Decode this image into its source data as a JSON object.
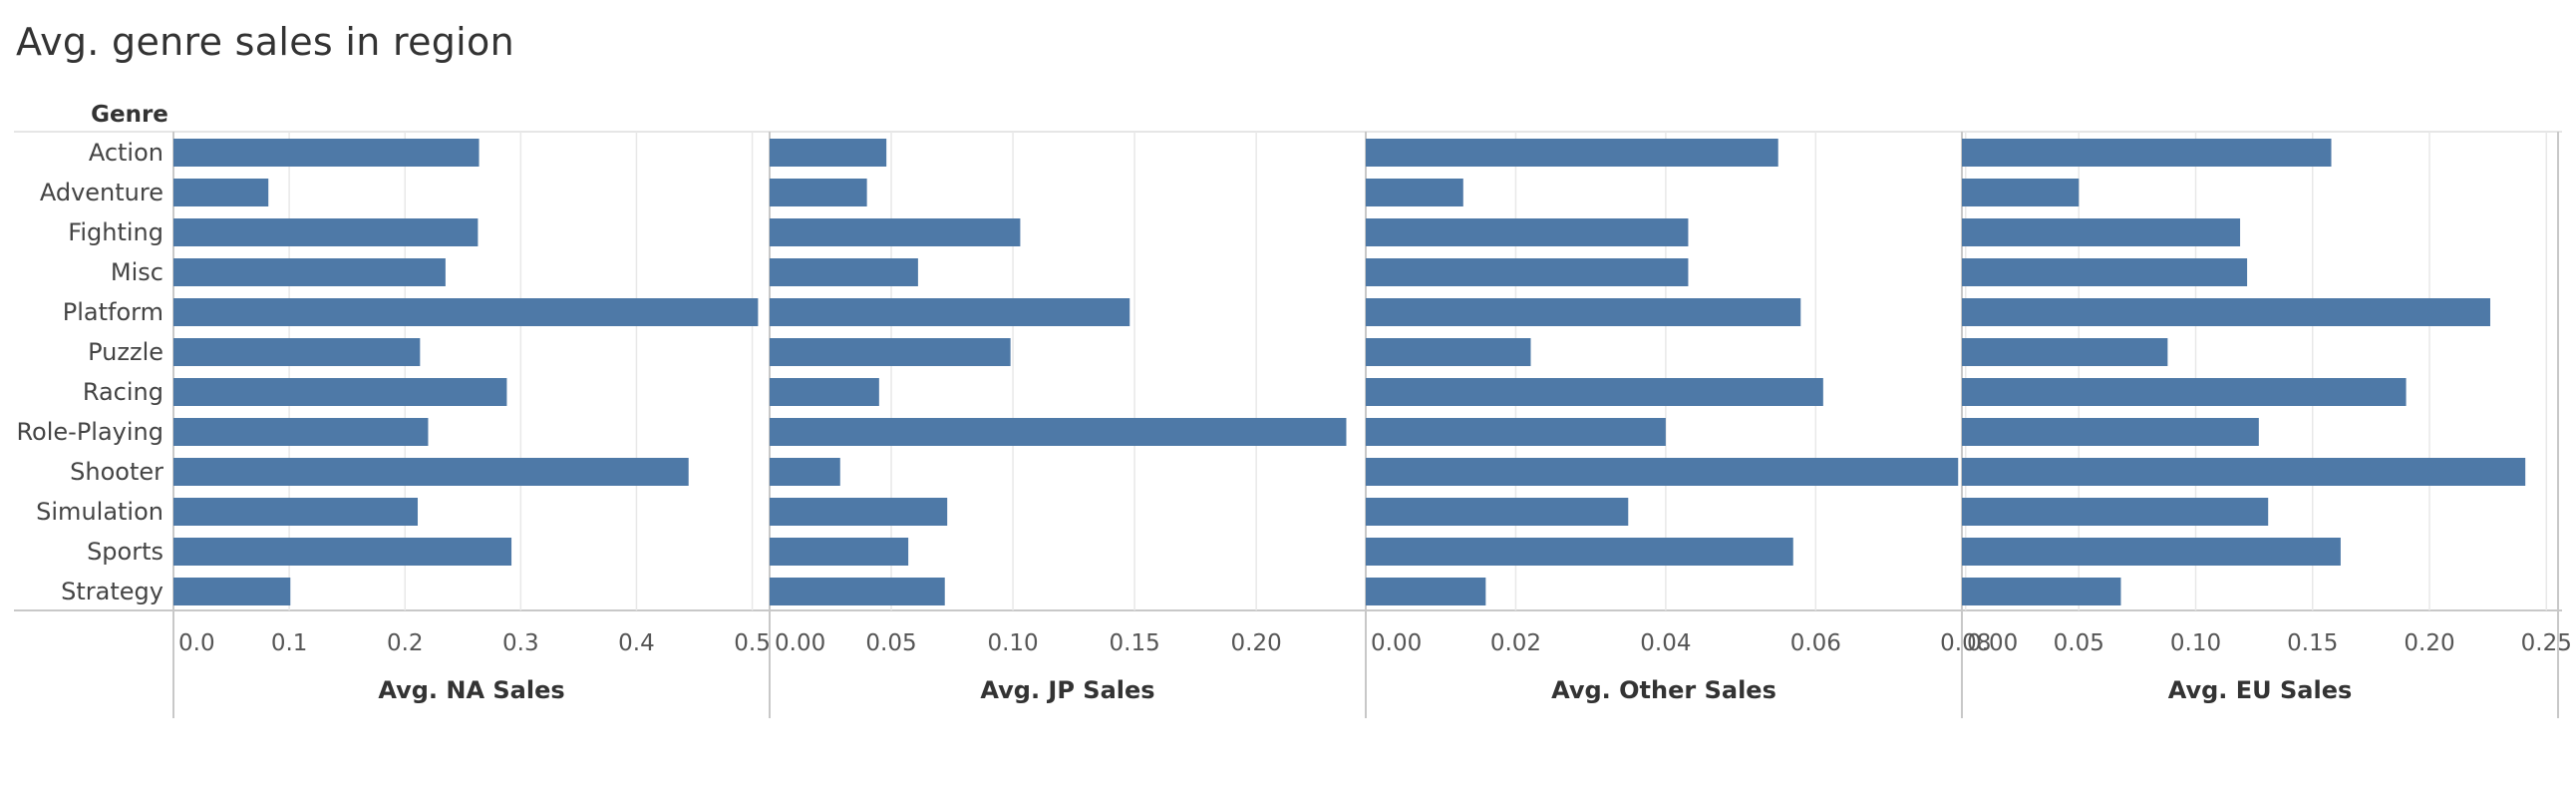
{
  "title": "Avg. genre sales in region",
  "row_header": "Genre",
  "colors": {
    "bar": "#4e79a7",
    "grid": "#e8e8e8",
    "axis": "#c8c8c8"
  },
  "chart_data": [
    {
      "type": "bar",
      "orientation": "horizontal",
      "xlabel": "Avg. NA Sales",
      "categories": [
        "Action",
        "Adventure",
        "Fighting",
        "Misc",
        "Platform",
        "Puzzle",
        "Racing",
        "Role-Playing",
        "Shooter",
        "Simulation",
        "Sports",
        "Strategy"
      ],
      "values": [
        0.264,
        0.082,
        0.263,
        0.235,
        0.505,
        0.213,
        0.288,
        0.22,
        0.445,
        0.211,
        0.292,
        0.101
      ],
      "xticks": [
        0.0,
        0.1,
        0.2,
        0.3,
        0.4,
        0.5
      ],
      "xtick_labels": [
        "0.0",
        "0.1",
        "0.2",
        "0.3",
        "0.4",
        "0.5"
      ],
      "xlim": [
        0,
        0.515
      ],
      "grid": true
    },
    {
      "type": "bar",
      "orientation": "horizontal",
      "xlabel": "Avg. JP Sales",
      "categories": [
        "Action",
        "Adventure",
        "Fighting",
        "Misc",
        "Platform",
        "Puzzle",
        "Racing",
        "Role-Playing",
        "Shooter",
        "Simulation",
        "Sports",
        "Strategy"
      ],
      "values": [
        0.048,
        0.04,
        0.103,
        0.061,
        0.148,
        0.099,
        0.045,
        0.237,
        0.029,
        0.073,
        0.057,
        0.072
      ],
      "xticks": [
        0.0,
        0.05,
        0.1,
        0.15,
        0.2
      ],
      "xtick_labels": [
        "0.00",
        "0.05",
        "0.10",
        "0.15",
        "0.20"
      ],
      "xlim": [
        0,
        0.245
      ],
      "grid": true
    },
    {
      "type": "bar",
      "orientation": "horizontal",
      "xlabel": "Avg. Other Sales",
      "categories": [
        "Action",
        "Adventure",
        "Fighting",
        "Misc",
        "Platform",
        "Puzzle",
        "Racing",
        "Role-Playing",
        "Shooter",
        "Simulation",
        "Sports",
        "Strategy"
      ],
      "values": [
        0.055,
        0.013,
        0.043,
        0.043,
        0.058,
        0.022,
        0.061,
        0.04,
        0.079,
        0.035,
        0.057,
        0.016
      ],
      "xticks": [
        0.0,
        0.02,
        0.04,
        0.06,
        0.08
      ],
      "xtick_labels": [
        "0.00",
        "0.02",
        "0.04",
        "0.06",
        "0.08"
      ],
      "xlim": [
        0,
        0.0795
      ],
      "grid": true
    },
    {
      "type": "bar",
      "orientation": "horizontal",
      "xlabel": "Avg. EU Sales",
      "categories": [
        "Action",
        "Adventure",
        "Fighting",
        "Misc",
        "Platform",
        "Puzzle",
        "Racing",
        "Role-Playing",
        "Shooter",
        "Simulation",
        "Sports",
        "Strategy"
      ],
      "values": [
        0.158,
        0.05,
        0.119,
        0.122,
        0.226,
        0.088,
        0.19,
        0.127,
        0.241,
        0.131,
        0.162,
        0.068
      ],
      "xticks": [
        0.0,
        0.05,
        0.1,
        0.15,
        0.2,
        0.25
      ],
      "xtick_labels": [
        "0.00",
        "0.05",
        "0.10",
        "0.15",
        "0.20",
        "0.25"
      ],
      "xlim": [
        0,
        0.255
      ],
      "grid": true
    }
  ]
}
